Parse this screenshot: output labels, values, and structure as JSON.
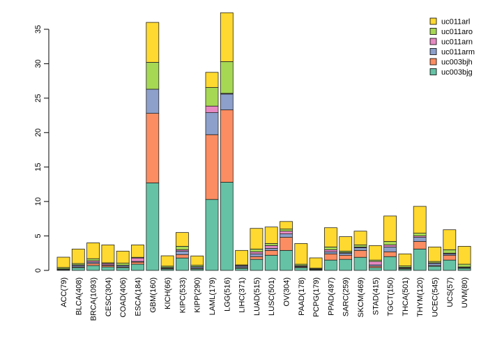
{
  "chart_data": {
    "type": "bar",
    "stacked": true,
    "title": "",
    "xlabel": "",
    "ylabel": "",
    "ylim": [
      0,
      38
    ],
    "yticks": [
      0,
      5,
      10,
      15,
      20,
      25,
      30,
      35
    ],
    "legend_position": "top-right",
    "categories": [
      "ACC(79)",
      "BLCA(408)",
      "BRCA(1093)",
      "CESC(304)",
      "COAD(406)",
      "ESCA(184)",
      "GBM(160)",
      "KICH(66)",
      "KIPC(533)",
      "KIPP(290)",
      "LAML(179)",
      "LGG(516)",
      "LIHC(371)",
      "LUAD(515)",
      "LUSC(501)",
      "OV(304)",
      "PAAD(178)",
      "PCPG(179)",
      "PPAD(497)",
      "SARC(259)",
      "SKCM(469)",
      "STAD(415)",
      "TGCT(150)",
      "THCA(501)",
      "THYM(120)",
      "UCEC(545)",
      "UCS(57)",
      "UVM(80)"
    ],
    "series": [
      {
        "name": "uc003bjg",
        "color": "#66c2a5",
        "values": [
          0.1,
          0.4,
          0.7,
          0.5,
          0.4,
          0.9,
          12.7,
          0.2,
          1.8,
          0.2,
          10.3,
          12.8,
          0.3,
          1.6,
          2.2,
          2.9,
          0.4,
          0.1,
          1.5,
          1.6,
          1.9,
          0.4,
          2.0,
          0.2,
          3.1,
          0.6,
          1.5,
          0.3
        ]
      },
      {
        "name": "uc003bjh",
        "color": "#fc8d62",
        "values": [
          0.05,
          0.1,
          0.3,
          0.2,
          0.1,
          0.3,
          10.1,
          0.1,
          0.5,
          0.1,
          9.4,
          10.5,
          0.1,
          0.4,
          0.7,
          1.9,
          0.1,
          0.05,
          0.9,
          0.6,
          1.0,
          0.2,
          0.7,
          0.1,
          1.1,
          0.1,
          0.7,
          0.05
        ]
      },
      {
        "name": "uc011arm",
        "color": "#8da0cb",
        "values": [
          0.05,
          0.2,
          0.2,
          0.1,
          0.2,
          0.1,
          3.5,
          0.1,
          0.5,
          0.2,
          3.2,
          2.3,
          0.2,
          0.4,
          0.3,
          0.5,
          0.1,
          0.05,
          0.3,
          0.3,
          0.4,
          0.2,
          0.7,
          0.1,
          0.6,
          0.3,
          0.2,
          0.1
        ]
      },
      {
        "name": "uc011arn",
        "color": "#e78ac3",
        "values": [
          0.02,
          0.1,
          0.2,
          0.2,
          0.05,
          0.5,
          0.0,
          0.02,
          0.2,
          0.05,
          0.95,
          0.1,
          0.1,
          0.3,
          0.4,
          0.4,
          0.1,
          0.02,
          0.3,
          0.1,
          0.1,
          0.5,
          0.3,
          0.05,
          0.2,
          0.1,
          0.1,
          0.05
        ]
      },
      {
        "name": "uc011aro",
        "color": "#a6d854",
        "values": [
          0.2,
          0.2,
          0.3,
          0.1,
          0.3,
          0.1,
          3.9,
          0.2,
          0.5,
          0.2,
          2.7,
          4.6,
          0.1,
          0.4,
          0.3,
          0.3,
          0.2,
          0.1,
          0.4,
          0.2,
          0.3,
          0.2,
          0.5,
          0.2,
          0.4,
          0.2,
          0.5,
          0.4
        ]
      },
      {
        "name": "uc011arl",
        "color": "#ffd92f",
        "values": [
          1.5,
          2.1,
          2.3,
          2.6,
          1.75,
          1.8,
          5.8,
          1.5,
          2.0,
          1.35,
          2.2,
          7.1,
          2.1,
          3.0,
          2.4,
          1.1,
          3.0,
          1.5,
          2.8,
          2.1,
          2.0,
          2.1,
          3.7,
          1.75,
          3.9,
          2.1,
          2.9,
          2.6
        ]
      }
    ]
  }
}
